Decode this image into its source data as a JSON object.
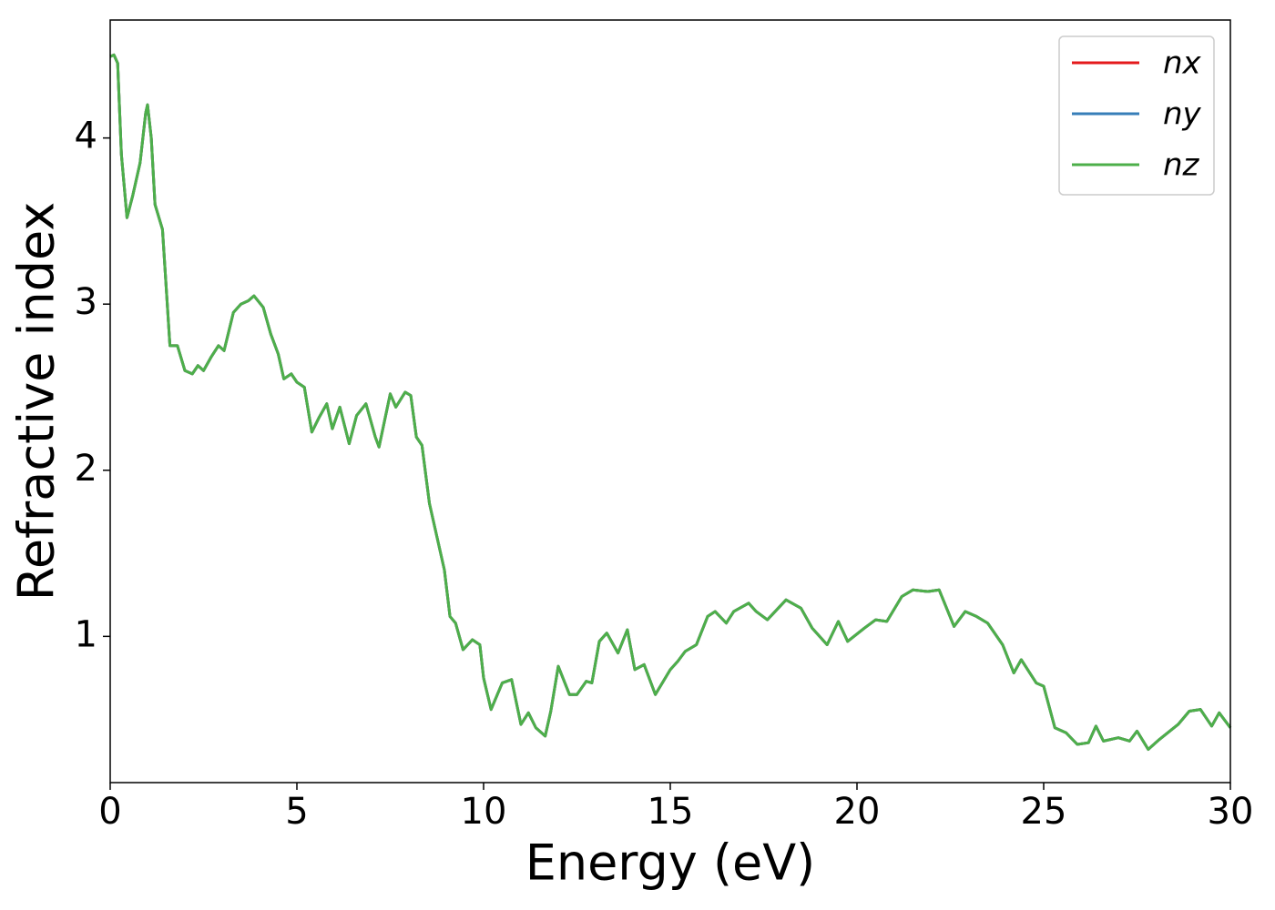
{
  "chart_data": {
    "type": "line",
    "xlabel": "Energy (eV)",
    "ylabel": "Refractive index",
    "x": [
      0,
      0.1,
      0.2,
      0.3,
      0.45,
      0.6,
      0.8,
      0.95,
      1.0,
      1.1,
      1.2,
      1.4,
      1.6,
      1.8,
      2.0,
      2.2,
      2.35,
      2.5,
      2.7,
      2.9,
      3.05,
      3.3,
      3.5,
      3.7,
      3.85,
      4.1,
      4.3,
      4.5,
      4.65,
      4.85,
      5.0,
      5.2,
      5.4,
      5.6,
      5.8,
      5.95,
      6.15,
      6.4,
      6.6,
      6.85,
      7.1,
      7.2,
      7.5,
      7.65,
      7.9,
      8.05,
      8.2,
      8.35,
      8.55,
      8.8,
      8.95,
      9.1,
      9.25,
      9.45,
      9.7,
      9.9,
      10.0,
      10.2,
      10.5,
      10.75,
      11.0,
      11.2,
      11.4,
      11.65,
      11.8,
      12.0,
      12.3,
      12.5,
      12.75,
      12.9,
      13.1,
      13.3,
      13.6,
      13.85,
      14.05,
      14.3,
      14.6,
      15.0,
      15.2,
      15.4,
      15.7,
      16.0,
      16.2,
      16.5,
      16.7,
      17.1,
      17.3,
      17.6,
      18.1,
      18.5,
      18.8,
      19.2,
      19.5,
      19.75,
      20.2,
      20.5,
      20.8,
      21.2,
      21.5,
      21.9,
      22.2,
      22.6,
      22.9,
      23.2,
      23.5,
      23.9,
      24.2,
      24.4,
      24.8,
      25.0,
      25.3,
      25.6,
      25.9,
      26.2,
      26.4,
      26.6,
      27.0,
      27.3,
      27.5,
      27.8,
      28.1,
      28.6,
      28.9,
      29.2,
      29.5,
      29.7,
      30.0
    ],
    "series": [
      {
        "name": "nx",
        "color": "#e41a1c",
        "values": [
          4.49,
          4.5,
          4.45,
          3.9,
          3.52,
          3.65,
          3.85,
          4.15,
          4.2,
          4.0,
          3.6,
          3.45,
          2.75,
          2.75,
          2.6,
          2.58,
          2.63,
          2.6,
          2.68,
          2.75,
          2.72,
          2.95,
          3.0,
          3.02,
          3.05,
          2.98,
          2.82,
          2.7,
          2.55,
          2.58,
          2.53,
          2.5,
          2.23,
          2.32,
          2.4,
          2.25,
          2.38,
          2.16,
          2.33,
          2.4,
          2.2,
          2.14,
          2.46,
          2.38,
          2.47,
          2.45,
          2.2,
          2.15,
          1.8,
          1.55,
          1.4,
          1.12,
          1.08,
          0.92,
          0.98,
          0.95,
          0.75,
          0.56,
          0.72,
          0.74,
          0.47,
          0.54,
          0.45,
          0.4,
          0.55,
          0.82,
          0.65,
          0.65,
          0.73,
          0.72,
          0.97,
          1.02,
          0.9,
          1.04,
          0.8,
          0.83,
          0.65,
          0.8,
          0.85,
          0.91,
          0.95,
          1.12,
          1.15,
          1.08,
          1.15,
          1.2,
          1.15,
          1.1,
          1.22,
          1.17,
          1.05,
          0.95,
          1.09,
          0.97,
          1.05,
          1.1,
          1.09,
          1.24,
          1.28,
          1.27,
          1.28,
          1.06,
          1.15,
          1.12,
          1.08,
          0.95,
          0.78,
          0.86,
          0.72,
          0.7,
          0.45,
          0.42,
          0.35,
          0.36,
          0.46,
          0.37,
          0.39,
          0.37,
          0.43,
          0.32,
          0.38,
          0.47,
          0.55,
          0.56,
          0.46,
          0.54,
          0.45
        ]
      },
      {
        "name": "ny",
        "color": "#377eb8",
        "values": [
          4.49,
          4.5,
          4.45,
          3.9,
          3.52,
          3.65,
          3.85,
          4.15,
          4.2,
          4.0,
          3.6,
          3.45,
          2.75,
          2.75,
          2.6,
          2.58,
          2.63,
          2.6,
          2.68,
          2.75,
          2.72,
          2.95,
          3.0,
          3.02,
          3.05,
          2.98,
          2.82,
          2.7,
          2.55,
          2.58,
          2.53,
          2.5,
          2.23,
          2.32,
          2.4,
          2.25,
          2.38,
          2.16,
          2.33,
          2.4,
          2.2,
          2.14,
          2.46,
          2.38,
          2.47,
          2.45,
          2.2,
          2.15,
          1.8,
          1.55,
          1.4,
          1.12,
          1.08,
          0.92,
          0.98,
          0.95,
          0.75,
          0.56,
          0.72,
          0.74,
          0.47,
          0.54,
          0.45,
          0.4,
          0.55,
          0.82,
          0.65,
          0.65,
          0.73,
          0.72,
          0.97,
          1.02,
          0.9,
          1.04,
          0.8,
          0.83,
          0.65,
          0.8,
          0.85,
          0.91,
          0.95,
          1.12,
          1.15,
          1.08,
          1.15,
          1.2,
          1.15,
          1.1,
          1.22,
          1.17,
          1.05,
          0.95,
          1.09,
          0.97,
          1.05,
          1.1,
          1.09,
          1.24,
          1.28,
          1.27,
          1.28,
          1.06,
          1.15,
          1.12,
          1.08,
          0.95,
          0.78,
          0.86,
          0.72,
          0.7,
          0.45,
          0.42,
          0.35,
          0.36,
          0.46,
          0.37,
          0.39,
          0.37,
          0.43,
          0.32,
          0.38,
          0.47,
          0.55,
          0.56,
          0.46,
          0.54,
          0.45
        ]
      },
      {
        "name": "nz",
        "color": "#4daf4a",
        "values": [
          4.49,
          4.5,
          4.45,
          3.9,
          3.52,
          3.65,
          3.85,
          4.15,
          4.2,
          4.0,
          3.6,
          3.45,
          2.75,
          2.75,
          2.6,
          2.58,
          2.63,
          2.6,
          2.68,
          2.75,
          2.72,
          2.95,
          3.0,
          3.02,
          3.05,
          2.98,
          2.82,
          2.7,
          2.55,
          2.58,
          2.53,
          2.5,
          2.23,
          2.32,
          2.4,
          2.25,
          2.38,
          2.16,
          2.33,
          2.4,
          2.2,
          2.14,
          2.46,
          2.38,
          2.47,
          2.45,
          2.2,
          2.15,
          1.8,
          1.55,
          1.4,
          1.12,
          1.08,
          0.92,
          0.98,
          0.95,
          0.75,
          0.56,
          0.72,
          0.74,
          0.47,
          0.54,
          0.45,
          0.4,
          0.55,
          0.82,
          0.65,
          0.65,
          0.73,
          0.72,
          0.97,
          1.02,
          0.9,
          1.04,
          0.8,
          0.83,
          0.65,
          0.8,
          0.85,
          0.91,
          0.95,
          1.12,
          1.15,
          1.08,
          1.15,
          1.2,
          1.15,
          1.1,
          1.22,
          1.17,
          1.05,
          0.95,
          1.09,
          0.97,
          1.05,
          1.1,
          1.09,
          1.24,
          1.28,
          1.27,
          1.28,
          1.06,
          1.15,
          1.12,
          1.08,
          0.95,
          0.78,
          0.86,
          0.72,
          0.7,
          0.45,
          0.42,
          0.35,
          0.36,
          0.46,
          0.37,
          0.39,
          0.37,
          0.43,
          0.32,
          0.38,
          0.47,
          0.55,
          0.56,
          0.46,
          0.54,
          0.45
        ]
      }
    ],
    "xlim": [
      0,
      30
    ],
    "xticks": [
      0,
      5,
      10,
      15,
      20,
      25,
      30
    ],
    "ylim": [
      0.12,
      4.71
    ],
    "yticks": [
      1,
      2,
      3,
      4
    ],
    "legend": "upper right"
  }
}
